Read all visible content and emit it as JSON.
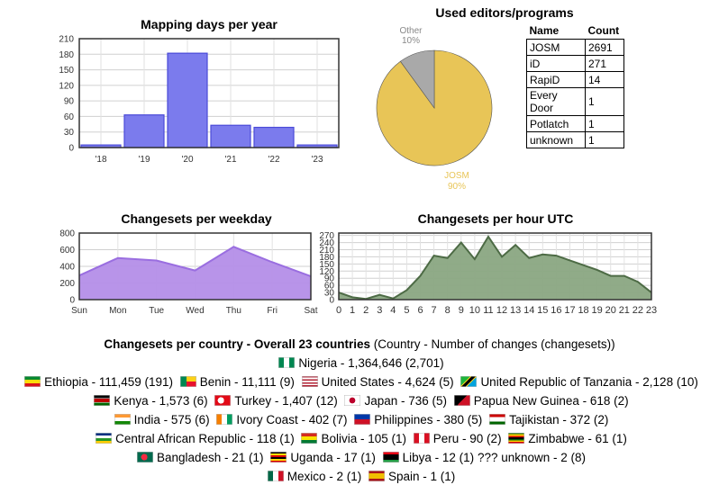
{
  "chart_data": [
    {
      "type": "bar",
      "title": "Mapping days per year",
      "categories": [
        "'18",
        "'19",
        "'20",
        "'21",
        "'22",
        "'23"
      ],
      "values": [
        5,
        63,
        182,
        43,
        39,
        5
      ],
      "yticks": [
        0,
        30,
        60,
        90,
        120,
        150,
        180,
        210
      ],
      "ylim": [
        0,
        210
      ],
      "grid": true,
      "color": "#7b7bed"
    },
    {
      "type": "pie",
      "title": "Used editors/programs",
      "slices": [
        {
          "label": "JOSM",
          "percent": "90%",
          "value": 90,
          "color": "#e8c557"
        },
        {
          "label": "Other",
          "percent": "10%",
          "value": 10,
          "color": "#a9a9a9"
        }
      ]
    },
    {
      "type": "area",
      "title": "Changesets per weekday",
      "categories": [
        "Sun",
        "Mon",
        "Tue",
        "Wed",
        "Thu",
        "Fri",
        "Sat"
      ],
      "values": [
        290,
        500,
        470,
        350,
        635,
        450,
        280
      ],
      "yticks": [
        0,
        200,
        400,
        600,
        800
      ],
      "ylim": [
        0,
        800
      ],
      "grid": true,
      "color": "#b48ee8"
    },
    {
      "type": "area",
      "title": "Changesets per hour UTC",
      "categories": [
        "0",
        "1",
        "2",
        "3",
        "4",
        "5",
        "6",
        "7",
        "8",
        "9",
        "10",
        "11",
        "12",
        "13",
        "14",
        "15",
        "16",
        "17",
        "18",
        "19",
        "20",
        "21",
        "22",
        "23"
      ],
      "values": [
        30,
        10,
        3,
        20,
        5,
        40,
        100,
        185,
        175,
        240,
        170,
        265,
        180,
        230,
        175,
        190,
        185,
        165,
        145,
        125,
        100,
        100,
        75,
        30
      ],
      "yticks": [
        0,
        30,
        60,
        90,
        120,
        150,
        180,
        210,
        240,
        270
      ],
      "ylim": [
        0,
        280
      ],
      "grid": true,
      "color": "#8aa682"
    }
  ],
  "editors_table": {
    "headers": [
      "Name",
      "Count"
    ],
    "rows": [
      {
        "name": "JOSM",
        "count": "2691"
      },
      {
        "name": "iD",
        "count": "271"
      },
      {
        "name": "RapiD",
        "count": "14"
      },
      {
        "name": "Every Door",
        "count": "1"
      },
      {
        "name": "Potlatch",
        "count": "1"
      },
      {
        "name": "unknown",
        "count": "1"
      }
    ]
  },
  "countries": {
    "heading_bold": "Changesets per country - Overall 23 countries",
    "heading_note": " (Country - Number of changes (changesets))",
    "rows": [
      [
        {
          "flag": "ng",
          "text": "Nigeria - 1,364,646 (2,701)"
        }
      ],
      [
        {
          "flag": "et",
          "text": "Ethiopia - 111,459 (191)"
        },
        {
          "flag": "bj",
          "text": "Benin - 11,111 (9)"
        },
        {
          "flag": "us",
          "text": "United States - 4,624 (5)"
        },
        {
          "flag": "tz",
          "text": "United Republic of Tanzania - 2,128 (10)"
        }
      ],
      [
        {
          "flag": "ke",
          "text": "Kenya - 1,573 (6)"
        },
        {
          "flag": "tr",
          "text": "Turkey - 1,407 (12)"
        },
        {
          "flag": "jp",
          "text": "Japan - 736 (5)"
        },
        {
          "flag": "pg",
          "text": "Papua New Guinea - 618 (2)"
        }
      ],
      [
        {
          "flag": "in",
          "text": "India - 575 (6)"
        },
        {
          "flag": "ci",
          "text": "Ivory Coast - 402 (7)"
        },
        {
          "flag": "ph",
          "text": "Philippines - 380 (5)"
        },
        {
          "flag": "tj",
          "text": "Tajikistan - 372 (2)"
        }
      ],
      [
        {
          "flag": "cf",
          "text": "Central African Republic - 118 (1)"
        },
        {
          "flag": "bo",
          "text": "Bolivia - 105 (1)"
        },
        {
          "flag": "pe",
          "text": "Peru - 90 (2)"
        },
        {
          "flag": "zw",
          "text": "Zimbabwe - 61 (1)"
        }
      ],
      [
        {
          "flag": "bd",
          "text": "Bangladesh - 21 (1)"
        },
        {
          "flag": "ug",
          "text": "Uganda - 17 (1)"
        },
        {
          "flag": "ly",
          "text": "Libya - 12 (1)"
        },
        {
          "flag": "none",
          "text": "??? unknown - 2 (8)"
        }
      ],
      [
        {
          "flag": "mx",
          "text": "Mexico - 2 (1)"
        },
        {
          "flag": "es",
          "text": "Spain - 1 (1)"
        }
      ]
    ]
  }
}
